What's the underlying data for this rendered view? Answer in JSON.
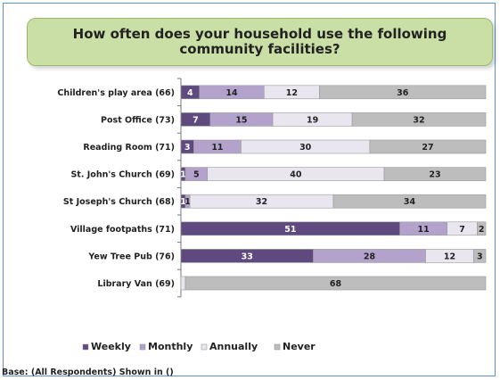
{
  "chart_data": {
    "type": "bar",
    "orientation": "horizontal",
    "stacked": true,
    "title": "How often does your household use the following community facilities?",
    "categories": [
      "Children's play area (66)",
      "Post Office (73)",
      "Reading Room (71)",
      "St. John's Church (69)",
      "St Joseph's Church (68)",
      "Village footpaths (71)",
      "Yew Tree Pub (76)",
      "Library Van (69)"
    ],
    "series": [
      {
        "name": "Weekly",
        "color": "#5e4a7e",
        "values": [
          4,
          7,
          3,
          1,
          1,
          51,
          33,
          0
        ]
      },
      {
        "name": "Monthly",
        "color": "#b3a2cc",
        "values": [
          14,
          15,
          11,
          5,
          1,
          11,
          28,
          0
        ]
      },
      {
        "name": "Annually",
        "color": "#e9e6f0",
        "values": [
          12,
          19,
          30,
          40,
          32,
          7,
          12,
          1
        ]
      },
      {
        "name": "Never",
        "color": "#bdbdbd",
        "values": [
          36,
          32,
          27,
          23,
          34,
          2,
          3,
          68
        ]
      }
    ],
    "value_labels": [
      [
        "4",
        "14",
        "12",
        "36"
      ],
      [
        "7",
        "15",
        "19",
        "32"
      ],
      [
        "3",
        "11",
        "30",
        "27"
      ],
      [
        "1",
        "5",
        "40",
        "23"
      ],
      [
        "1",
        "1",
        "32",
        "34"
      ],
      [
        "51",
        "11",
        "7",
        "2"
      ],
      [
        "33",
        "28",
        "12",
        "3"
      ],
      [
        "",
        "",
        "",
        "68"
      ]
    ],
    "xlim": [
      0,
      100
    ],
    "legend_position": "bottom-left",
    "note": "Base: (All Respondents) Shown in ()"
  }
}
